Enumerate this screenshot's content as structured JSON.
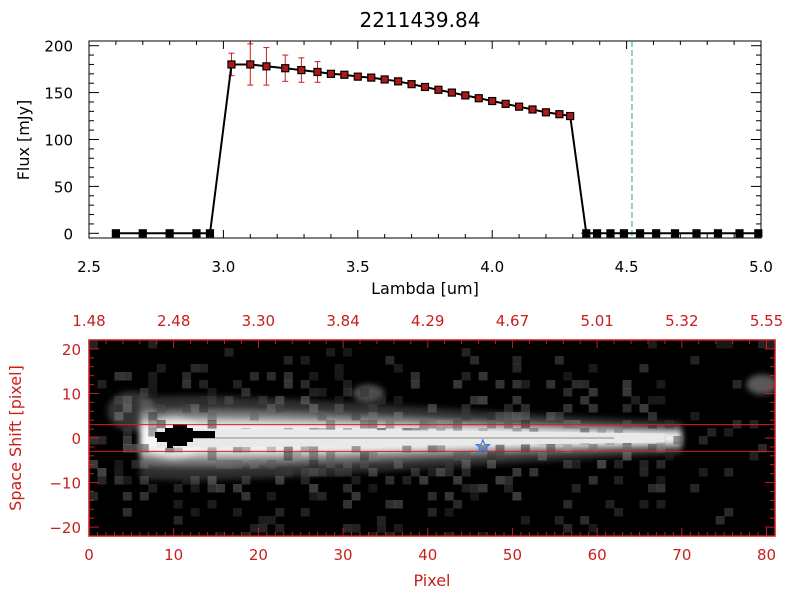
{
  "chart_data": [
    {
      "type": "line",
      "title": "2211439.84",
      "xlabel": "Lambda [um]",
      "ylabel": "Flux [mJy]",
      "xlim": [
        2.5,
        5.0
      ],
      "ylim": [
        -5,
        205
      ],
      "x_ticks": [
        "2.5",
        "3.0",
        "3.5",
        "4.0",
        "4.5",
        "5.0"
      ],
      "y_ticks": [
        "0",
        "50",
        "100",
        "150",
        "200"
      ],
      "grid": false,
      "legend": "none",
      "reference_line_x": 4.52,
      "series": [
        {
          "x": [
            2.6,
            2.7,
            2.8,
            2.9,
            2.95,
            3.03,
            3.1,
            3.16,
            3.23,
            3.29,
            3.35,
            3.4,
            3.45,
            3.5,
            3.55,
            3.6,
            3.65,
            3.7,
            3.75,
            3.8,
            3.85,
            3.9,
            3.95,
            4.0,
            4.05,
            4.1,
            4.15,
            4.2,
            4.25,
            4.29,
            4.35,
            4.39,
            4.44,
            4.49,
            4.55,
            4.61,
            4.68,
            4.76,
            4.84,
            4.92,
            4.99
          ],
          "y": [
            0,
            0,
            0,
            0,
            0,
            180,
            180,
            178,
            176,
            174,
            172,
            170,
            169,
            167,
            166,
            164,
            162,
            159,
            156,
            153,
            150,
            147,
            144,
            141,
            138,
            135,
            132,
            129,
            127,
            125,
            0,
            0,
            0,
            0,
            0,
            0,
            0,
            0,
            0,
            0,
            0
          ],
          "err": [
            0,
            0,
            0,
            0,
            0,
            12,
            22,
            20,
            14,
            13,
            11,
            3,
            3,
            3,
            3,
            3,
            3,
            3,
            3,
            3,
            3,
            3,
            3,
            3,
            3,
            3,
            3,
            3,
            3,
            3,
            0,
            0,
            0,
            0,
            0,
            0,
            0,
            0,
            0,
            0,
            0
          ]
        }
      ]
    },
    {
      "type": "heatmap",
      "xlabel": "Pixel",
      "ylabel": "Space Shift [pixel]",
      "xlim": [
        0,
        81
      ],
      "ylim": [
        -22,
        22
      ],
      "x_ticks": [
        "0",
        "10",
        "20",
        "30",
        "40",
        "50",
        "60",
        "70",
        "80"
      ],
      "y_ticks": [
        "−20",
        "−10",
        "0",
        "10",
        "20"
      ],
      "top_axis_ticks": [
        "1.48",
        "2.48",
        "3.30",
        "3.84",
        "4.29",
        "4.67",
        "5.01",
        "5.32",
        "5.55"
      ],
      "extraction_window": [
        -3,
        3
      ],
      "source_marker": {
        "x": 46.5,
        "y": -2
      },
      "colormap": "grayscale",
      "axis_color": "#c81e1e"
    }
  ]
}
